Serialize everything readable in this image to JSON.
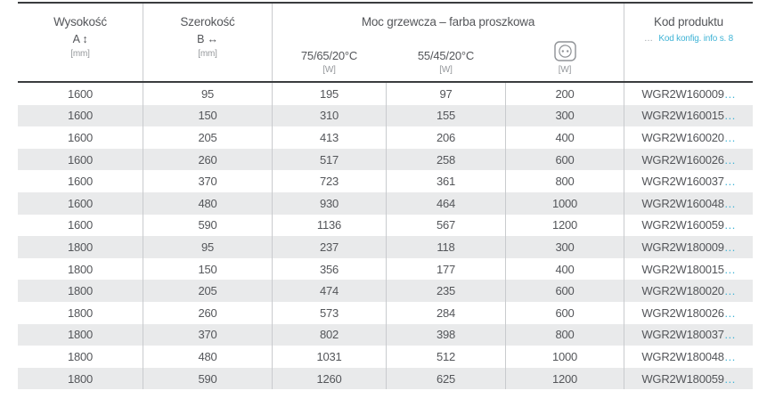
{
  "colors": {
    "accent_teal": "#41b4d6",
    "stripe_gray": "#e9eaeb",
    "grid_line": "#c9cbce",
    "dark_rule": "#3a3c3e",
    "text_dark": "#54565a",
    "text_muted": "#94979b"
  },
  "header": {
    "height_col": {
      "title": "Wysokość",
      "symbol": "A ↕",
      "unit": "[mm]"
    },
    "width_col": {
      "title": "Szerokość",
      "symbol": "B ↔",
      "unit": "[mm]"
    },
    "power_group": {
      "title": "Moc grzewcza – farba proszkowa",
      "sub_75": {
        "label": "75/65/20°C",
        "unit": "[W]"
      },
      "sub_55": {
        "label": "55/45/20°C",
        "unit": "[W]"
      },
      "sub_el": {
        "icon": "electric-socket-icon",
        "unit": "[W]"
      }
    },
    "code_col": {
      "title": "Kod produktu",
      "ellipsis": "…",
      "link": "Kod konfig. info s. 8"
    }
  },
  "table": {
    "code_suffix": "…",
    "columns": [
      "height_mm",
      "width_mm",
      "power_75_65_20_W",
      "power_55_45_20_W",
      "power_electric_W",
      "product_code"
    ],
    "rows": [
      [
        "1600",
        "95",
        "195",
        "97",
        "200",
        "WGR2W160009"
      ],
      [
        "1600",
        "150",
        "310",
        "155",
        "300",
        "WGR2W160015"
      ],
      [
        "1600",
        "205",
        "413",
        "206",
        "400",
        "WGR2W160020"
      ],
      [
        "1600",
        "260",
        "517",
        "258",
        "600",
        "WGR2W160026"
      ],
      [
        "1600",
        "370",
        "723",
        "361",
        "800",
        "WGR2W160037"
      ],
      [
        "1600",
        "480",
        "930",
        "464",
        "1000",
        "WGR2W160048"
      ],
      [
        "1600",
        "590",
        "1136",
        "567",
        "1200",
        "WGR2W160059"
      ],
      [
        "1800",
        "95",
        "237",
        "118",
        "300",
        "WGR2W180009"
      ],
      [
        "1800",
        "150",
        "356",
        "177",
        "400",
        "WGR2W180015"
      ],
      [
        "1800",
        "205",
        "474",
        "235",
        "600",
        "WGR2W180020"
      ],
      [
        "1800",
        "260",
        "573",
        "284",
        "600",
        "WGR2W180026"
      ],
      [
        "1800",
        "370",
        "802",
        "398",
        "800",
        "WGR2W180037"
      ],
      [
        "1800",
        "480",
        "1031",
        "512",
        "1000",
        "WGR2W180048"
      ],
      [
        "1800",
        "590",
        "1260",
        "625",
        "1200",
        "WGR2W180059"
      ]
    ]
  }
}
